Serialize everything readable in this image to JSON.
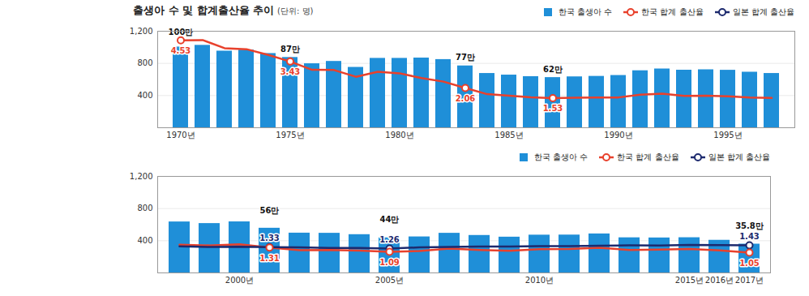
{
  "chart_data": [
    {
      "type": "bar",
      "title": "출생아 수 및 합계출산율 추이",
      "subtitle": "(단위: 명)",
      "categories": [
        "1970년",
        null,
        null,
        null,
        null,
        "1975년",
        null,
        null,
        null,
        null,
        "1980년",
        null,
        null,
        null,
        null,
        "1985년",
        null,
        null,
        null,
        null,
        "1990년",
        null,
        null,
        null,
        null,
        "1995년",
        null,
        null
      ],
      "ylim": [
        0,
        1200
      ],
      "yticks": [
        400,
        800,
        {
          "value": 1200,
          "label": "1,200"
        }
      ],
      "y2lim": [
        0,
        5
      ],
      "grid": true,
      "legend": "top-right",
      "series": [
        {
          "name": "한국 출생아 수",
          "type": "bar",
          "color": "#1f8fd8",
          "values": [
            1004,
            1025,
            953,
            966,
            923,
            874,
            796,
            825,
            751,
            863,
            863,
            867,
            848,
            769,
            675,
            655,
            636,
            624,
            633,
            639,
            650,
            709,
            731,
            716,
            721,
            715,
            691,
            675
          ],
          "value_labels": [
            "100만",
            null,
            null,
            null,
            null,
            "87만",
            null,
            null,
            null,
            null,
            null,
            null,
            null,
            "77만",
            null,
            null,
            null,
            "62만",
            null,
            null,
            null,
            null,
            null,
            null,
            null,
            null,
            null,
            null
          ]
        },
        {
          "name": "한국 합계 출산율",
          "type": "line",
          "axis": "y2",
          "color": "#e8412c",
          "marker": "circle",
          "values": [
            4.53,
            4.54,
            4.12,
            4.07,
            3.77,
            3.43,
            3.0,
            2.99,
            2.64,
            2.9,
            2.82,
            2.57,
            2.39,
            2.06,
            1.74,
            1.66,
            1.58,
            1.53,
            1.55,
            1.56,
            1.57,
            1.71,
            1.76,
            1.65,
            1.66,
            1.63,
            1.57,
            1.54
          ],
          "value_labels": [
            "4.53",
            null,
            null,
            null,
            null,
            "3.43",
            null,
            null,
            null,
            null,
            null,
            null,
            null,
            "2.06",
            null,
            null,
            null,
            "1.53",
            null,
            null,
            null,
            null,
            null,
            null,
            null,
            null,
            null,
            null
          ]
        },
        {
          "name": "일본 합계 출산율",
          "type": "line",
          "axis": "y2",
          "color": "#1d2a6e",
          "marker": "circle",
          "values": [
            null,
            null,
            null,
            null,
            null,
            null,
            null,
            null,
            null,
            null,
            null,
            null,
            null,
            null,
            null,
            null,
            null,
            null,
            null,
            null,
            null,
            null,
            null,
            null,
            null,
            null,
            null,
            null
          ]
        }
      ]
    },
    {
      "type": "bar",
      "categories": [
        null,
        null,
        "2000년",
        null,
        null,
        null,
        null,
        "2005년",
        null,
        null,
        null,
        null,
        "2010년",
        null,
        null,
        null,
        null,
        "2015년",
        "2016년",
        "2017년"
      ],
      "ylim": [
        0,
        1200
      ],
      "yticks": [
        400,
        800,
        {
          "value": 1200,
          "label": "1,200"
        }
      ],
      "y2lim": [
        0,
        5
      ],
      "grid": true,
      "legend": "top-right",
      "series": [
        {
          "name": "한국 출생아 수",
          "type": "bar",
          "color": "#1f8fd8",
          "values": [
            634,
            614,
            635,
            556,
            495,
            493,
            476,
            436,
            448,
            493,
            466,
            445,
            470,
            471,
            485,
            437,
            435,
            438,
            406,
            358
          ],
          "value_labels": [
            null,
            null,
            null,
            "56만",
            null,
            null,
            null,
            "44만",
            null,
            null,
            null,
            null,
            null,
            null,
            null,
            null,
            null,
            null,
            null,
            "35.8만"
          ]
        },
        {
          "name": "한국 합계 출산율",
          "type": "line",
          "axis": "y2",
          "color": "#e8412c",
          "marker": "circle",
          "values": [
            1.46,
            1.42,
            1.48,
            1.31,
            1.18,
            1.19,
            1.16,
            1.09,
            1.13,
            1.26,
            1.19,
            1.15,
            1.23,
            1.24,
            1.3,
            1.19,
            1.21,
            1.24,
            1.17,
            1.05
          ],
          "value_labels": [
            null,
            null,
            null,
            "1.31",
            null,
            null,
            null,
            "1.09",
            null,
            null,
            null,
            null,
            null,
            null,
            null,
            null,
            null,
            null,
            null,
            "1.05"
          ]
        },
        {
          "name": "일본 합계 출산율",
          "type": "line",
          "axis": "y2",
          "color": "#1d2a6e",
          "marker": "circle",
          "values": [
            1.38,
            1.34,
            1.36,
            1.33,
            1.32,
            1.29,
            1.29,
            1.26,
            1.32,
            1.34,
            1.37,
            1.37,
            1.39,
            1.39,
            1.41,
            1.43,
            1.42,
            1.45,
            1.44,
            1.43
          ],
          "value_labels": [
            null,
            null,
            null,
            "1.33",
            null,
            null,
            null,
            "1.26",
            null,
            null,
            null,
            null,
            null,
            null,
            null,
            null,
            null,
            null,
            null,
            "1.43"
          ]
        }
      ]
    }
  ]
}
